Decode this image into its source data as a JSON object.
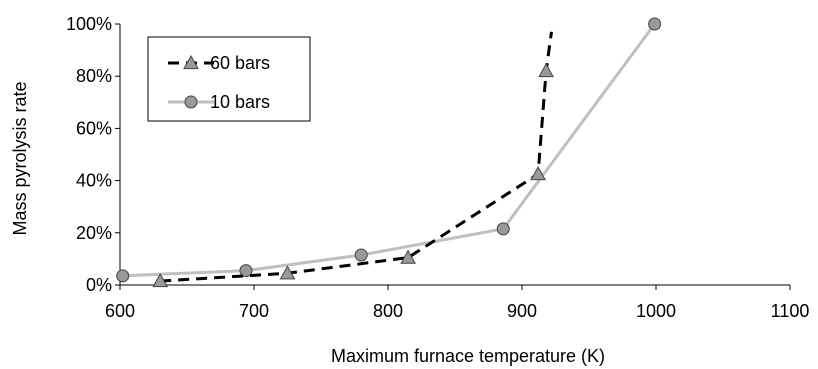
{
  "chart_data": {
    "type": "line",
    "xlabel": "Maximum furnace temperature (K)",
    "ylabel": "Mass pyrolysis rate",
    "xlim": [
      600,
      1100
    ],
    "ylim": [
      0,
      100
    ],
    "x_ticks": [
      600,
      700,
      800,
      900,
      1000,
      1100
    ],
    "x_tick_labels": [
      "600",
      "700",
      "800",
      "900",
      "1000",
      "1100"
    ],
    "y_ticks": [
      0,
      20,
      40,
      60,
      80,
      100
    ],
    "y_tick_labels": [
      "0%",
      "20%",
      "40%",
      "60%",
      "80%",
      "100%"
    ],
    "grid": false,
    "legend_position": "top-left",
    "series": [
      {
        "name": "60 bars",
        "line_style": "dashed",
        "line_color": "#000000",
        "marker": "triangle",
        "marker_color": "#999999",
        "points": [
          {
            "x": 630,
            "y": 1.5
          },
          {
            "x": 725,
            "y": 4.5
          },
          {
            "x": 815,
            "y": 10.5
          },
          {
            "x": 912,
            "y": 42.5
          },
          {
            "x": 918,
            "y": 82
          },
          {
            "x": 922,
            "y": 97
          }
        ],
        "marker_points": [
          {
            "x": 630,
            "y": 1.5
          },
          {
            "x": 725,
            "y": 4.5
          },
          {
            "x": 815,
            "y": 10.5
          },
          {
            "x": 912,
            "y": 42.5
          },
          {
            "x": 918,
            "y": 82
          }
        ]
      },
      {
        "name": "10 bars",
        "line_style": "solid",
        "line_color": "#bfbfbf",
        "marker": "circle",
        "marker_color": "#999999",
        "points": [
          {
            "x": 602,
            "y": 3.5
          },
          {
            "x": 694,
            "y": 5.5
          },
          {
            "x": 780,
            "y": 11.5
          },
          {
            "x": 886,
            "y": 21.5
          },
          {
            "x": 999,
            "y": 100
          }
        ],
        "marker_points": [
          {
            "x": 602,
            "y": 3.5
          },
          {
            "x": 694,
            "y": 5.5
          },
          {
            "x": 780,
            "y": 11.5
          },
          {
            "x": 886,
            "y": 21.5
          },
          {
            "x": 999,
            "y": 100
          }
        ]
      }
    ]
  }
}
